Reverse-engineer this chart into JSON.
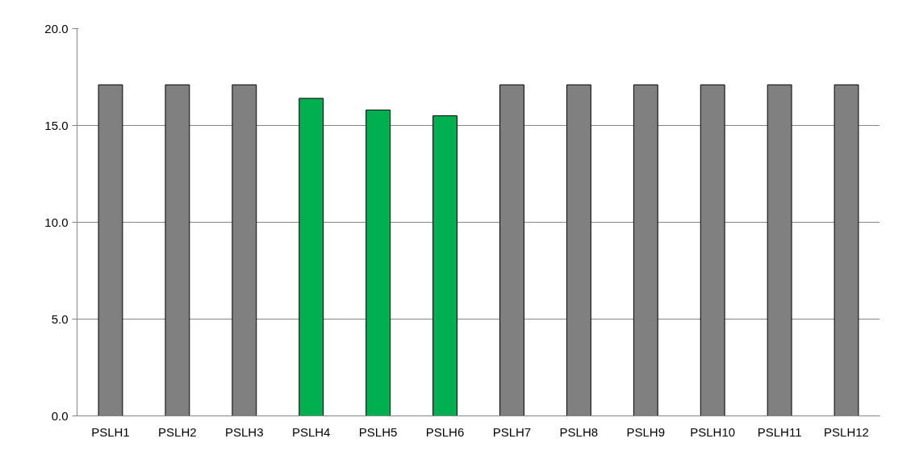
{
  "chart_data": {
    "type": "bar",
    "categories": [
      "PSLH1",
      "PSLH2",
      "PSLH3",
      "PSLH4",
      "PSLH5",
      "PSLH6",
      "PSLH7",
      "PSLH8",
      "PSLH9",
      "PSLH10",
      "PSLH11",
      "PSLH12"
    ],
    "values": [
      17.1,
      17.1,
      17.1,
      16.4,
      15.8,
      15.5,
      17.1,
      17.1,
      17.1,
      17.1,
      17.1,
      17.1
    ],
    "colors": [
      "#808080",
      "#808080",
      "#808080",
      "#00b050",
      "#00b050",
      "#00b050",
      "#808080",
      "#808080",
      "#808080",
      "#808080",
      "#808080",
      "#808080"
    ],
    "ylim": [
      0,
      20
    ],
    "yticks": [
      {
        "value": 0,
        "label": "0.0"
      },
      {
        "value": 5,
        "label": "5.0"
      },
      {
        "value": 10,
        "label": "10.0"
      },
      {
        "value": 15,
        "label": "15.0"
      },
      {
        "value": 20,
        "label": "20.0"
      }
    ],
    "grid": "y"
  }
}
